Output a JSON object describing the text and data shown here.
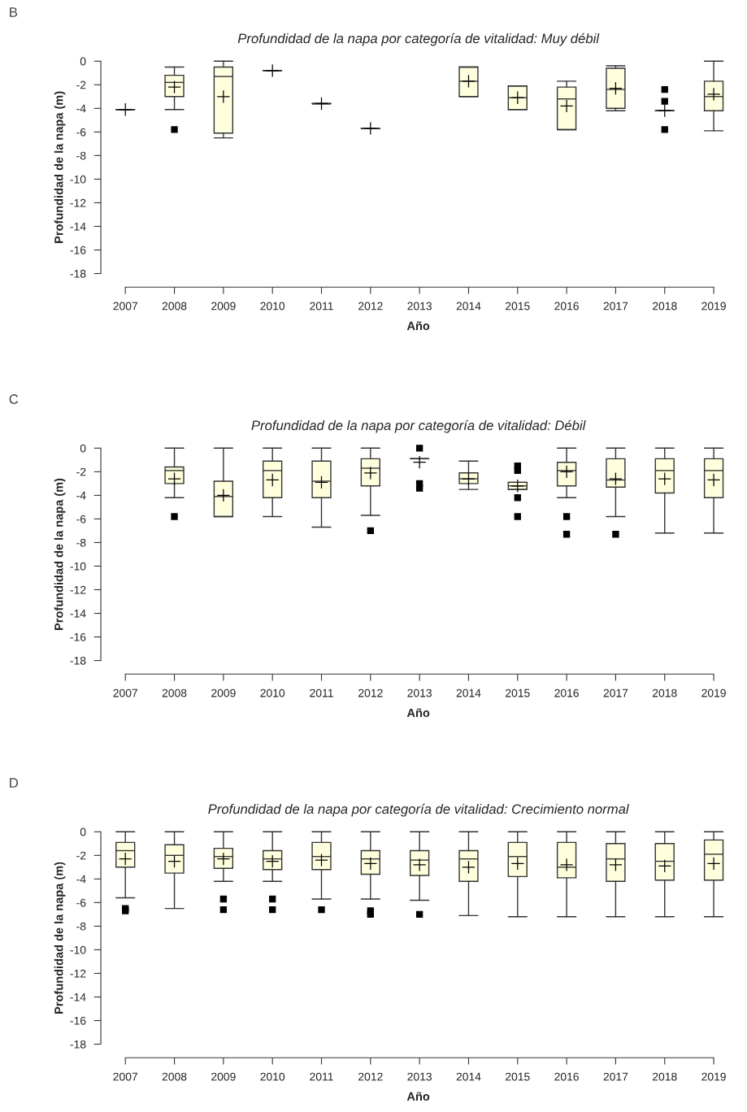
{
  "chart_data": [
    {
      "type": "box",
      "title": "Profundidad de la napa por categoría de vitalidad: Muy débil",
      "xlabel": "Año",
      "ylabel": "Profundidad de la napa (m)",
      "annotations": [
        "B"
      ],
      "colors": [
        "#333333",
        "#ffffdd",
        "#ffffdd",
        "#333333",
        "#333333",
        "#333333",
        null,
        "#ffffdd",
        "#ffffdd",
        "#ffffdd",
        "#ffffdd",
        "#333333",
        "#ffffdd"
      ],
      "categories": [
        "2007",
        "2008",
        "2009",
        "2010",
        "2011",
        "2012",
        "2013",
        "2014",
        "2015",
        "2016",
        "2017",
        "2018",
        "2019"
      ],
      "boxes": [
        {
          "low": -4.1,
          "q1": -4.1,
          "median": -4.1,
          "q3": -4.1,
          "high": -4.1,
          "mean": -4.1
        },
        {
          "low": -4.1,
          "q1": -3.0,
          "median": -1.8,
          "q3": -1.2,
          "high": -0.5,
          "mean": -2.2,
          "outliers": [
            -5.8
          ]
        },
        {
          "low": -6.5,
          "q1": -6.1,
          "median": -1.3,
          "q3": -0.5,
          "high": 0,
          "mean": -3.0
        },
        {
          "low": -0.8,
          "q1": -0.8,
          "median": -0.8,
          "q3": -0.8,
          "high": -0.8,
          "mean": -0.8
        },
        {
          "low": -3.6,
          "q1": -3.6,
          "median": -3.6,
          "q3": -3.6,
          "high": -3.6,
          "mean": -3.6
        },
        {
          "low": -5.7,
          "q1": -5.7,
          "median": -5.7,
          "q3": -5.7,
          "high": -5.7,
          "mean": -5.7
        },
        null,
        {
          "low": -3.0,
          "q1": -3.0,
          "median": -1.7,
          "q3": -0.5,
          "high": -0.5,
          "mean": -1.7
        },
        {
          "low": -4.1,
          "q1": -4.1,
          "median": -3.1,
          "q3": -2.1,
          "high": -2.1,
          "mean": -3.1
        },
        {
          "low": -5.8,
          "q1": -5.8,
          "median": -3.2,
          "q3": -2.2,
          "high": -1.7,
          "mean": -3.8
        },
        {
          "low": -4.2,
          "q1": -4.0,
          "median": -2.4,
          "q3": -0.6,
          "high": -0.4,
          "mean": -2.3
        },
        {
          "low": -4.2,
          "q1": -4.2,
          "median": -4.2,
          "q3": -4.2,
          "high": -4.2,
          "mean": -4.2,
          "outliers": [
            -2.4,
            -3.4,
            -5.8
          ]
        },
        {
          "low": -5.9,
          "q1": -4.2,
          "median": -3.0,
          "q3": -1.7,
          "high": 0,
          "mean": -2.8
        }
      ],
      "ylim": [
        -18,
        0
      ],
      "yticks": [
        0,
        -2,
        -4,
        -6,
        -8,
        -10,
        -12,
        -14,
        -16,
        -18
      ]
    },
    {
      "type": "box",
      "title": "Profundidad de la napa por categoría de vitalidad: Débil",
      "xlabel": "Año",
      "ylabel": "Profundidad de la napa (m)",
      "annotations": [
        "C"
      ],
      "colors": [
        null,
        "#ffffdd",
        "#ffffdd",
        "#ffffdd",
        "#ffffdd",
        "#ffffdd",
        "#333333",
        "#ffffdd",
        "#ffffdd",
        "#ffffdd",
        "#ffffdd",
        "#ffffdd",
        "#ffffdd"
      ],
      "categories": [
        "2007",
        "2008",
        "2009",
        "2010",
        "2011",
        "2012",
        "2013",
        "2014",
        "2015",
        "2016",
        "2017",
        "2018",
        "2019"
      ],
      "boxes": [
        null,
        {
          "low": -4.2,
          "q1": -3.0,
          "median": -1.9,
          "q3": -1.6,
          "high": 0,
          "mean": -2.6,
          "outliers": [
            -5.8
          ]
        },
        {
          "low": -5.8,
          "q1": -5.8,
          "median": -4.1,
          "q3": -2.8,
          "high": 0,
          "mean": -4.0
        },
        {
          "low": -5.8,
          "q1": -4.2,
          "median": -1.9,
          "q3": -1.1,
          "high": 0,
          "mean": -2.7
        },
        {
          "low": -6.7,
          "q1": -4.2,
          "median": -2.8,
          "q3": -1.1,
          "high": 0,
          "mean": -2.9
        },
        {
          "low": -5.7,
          "q1": -3.2,
          "median": -1.7,
          "q3": -0.9,
          "high": 0,
          "mean": -2.1,
          "outliers": [
            -7.0
          ]
        },
        {
          "low": -0.9,
          "q1": -0.9,
          "median": -0.9,
          "q3": -0.9,
          "high": -0.9,
          "mean": -1.2,
          "outliers": [
            0,
            -3.0,
            -3.4
          ]
        },
        {
          "low": -3.5,
          "q1": -3.0,
          "median": -2.6,
          "q3": -2.1,
          "high": -1.1,
          "mean": -2.6
        },
        {
          "low": -3.5,
          "q1": -3.5,
          "median": -3.2,
          "q3": -2.9,
          "high": -2.9,
          "mean": -3.2,
          "outliers": [
            -1.5,
            -1.9,
            -4.2,
            -5.8
          ]
        },
        {
          "low": -4.2,
          "q1": -3.2,
          "median": -1.9,
          "q3": -1.2,
          "high": 0,
          "mean": -2.0,
          "outliers": [
            -5.8,
            -7.3
          ]
        },
        {
          "low": -5.8,
          "q1": -3.3,
          "median": -2.7,
          "q3": -0.9,
          "high": 0,
          "mean": -2.6,
          "outliers": [
            -7.3
          ]
        },
        {
          "low": -7.2,
          "q1": -3.8,
          "median": -1.9,
          "q3": -0.9,
          "high": 0,
          "mean": -2.6
        },
        {
          "low": -7.2,
          "q1": -4.2,
          "median": -1.9,
          "q3": -0.9,
          "high": 0,
          "mean": -2.7
        }
      ],
      "ylim": [
        -18,
        0
      ],
      "yticks": [
        0,
        -2,
        -4,
        -6,
        -8,
        -10,
        -12,
        -14,
        -16,
        -18
      ]
    },
    {
      "type": "box",
      "title": "Profundidad de la napa por categoría de vitalidad: Crecimiento normal",
      "xlabel": "Año",
      "ylabel": "Profundidad de la napa (m)",
      "annotations": [
        "D"
      ],
      "color": "#ffffdd",
      "categories": [
        "2007",
        "2008",
        "2009",
        "2010",
        "2011",
        "2012",
        "2013",
        "2014",
        "2015",
        "2016",
        "2017",
        "2018",
        "2019"
      ],
      "boxes": [
        {
          "low": -5.6,
          "q1": -3.0,
          "median": -1.6,
          "q3": -0.9,
          "high": 0,
          "mean": -2.3,
          "outliers": [
            -6.5,
            -6.7
          ]
        },
        {
          "low": -6.5,
          "q1": -3.5,
          "median": -2.0,
          "q3": -1.1,
          "high": 0,
          "mean": -2.5
        },
        {
          "low": -4.2,
          "q1": -3.1,
          "median": -2.1,
          "q3": -1.4,
          "high": 0,
          "mean": -2.3,
          "outliers": [
            -5.7,
            -6.6
          ]
        },
        {
          "low": -4.2,
          "q1": -3.2,
          "median": -2.3,
          "q3": -1.6,
          "high": 0,
          "mean": -2.5,
          "outliers": [
            -5.7,
            -6.6
          ]
        },
        {
          "low": -5.7,
          "q1": -3.2,
          "median": -2.1,
          "q3": -0.9,
          "high": 0,
          "mean": -2.4,
          "outliers": [
            -6.6
          ]
        },
        {
          "low": -5.7,
          "q1": -3.6,
          "median": -2.3,
          "q3": -1.6,
          "high": 0,
          "mean": -2.7,
          "outliers": [
            -6.7,
            -7.0
          ]
        },
        {
          "low": -5.8,
          "q1": -3.7,
          "median": -2.4,
          "q3": -1.6,
          "high": 0,
          "mean": -2.8,
          "outliers": [
            -7.0
          ]
        },
        {
          "low": -7.1,
          "q1": -4.2,
          "median": -2.3,
          "q3": -1.6,
          "high": 0,
          "mean": -3.0
        },
        {
          "low": -7.2,
          "q1": -3.8,
          "median": -2.1,
          "q3": -0.9,
          "high": 0,
          "mean": -2.7
        },
        {
          "low": -7.2,
          "q1": -3.9,
          "median": -3.0,
          "q3": -0.9,
          "high": 0,
          "mean": -2.8
        },
        {
          "low": -7.2,
          "q1": -4.2,
          "median": -2.3,
          "q3": -1.0,
          "high": 0,
          "mean": -2.8
        },
        {
          "low": -7.2,
          "q1": -4.1,
          "median": -2.5,
          "q3": -1.0,
          "high": 0,
          "mean": -2.9
        },
        {
          "low": -7.2,
          "q1": -4.1,
          "median": -1.9,
          "q3": -0.7,
          "high": 0,
          "mean": -2.7
        }
      ],
      "ylim": [
        -18,
        0
      ],
      "yticks": [
        0,
        -2,
        -4,
        -6,
        -8,
        -10,
        -12,
        -14,
        -16,
        -18
      ]
    }
  ]
}
